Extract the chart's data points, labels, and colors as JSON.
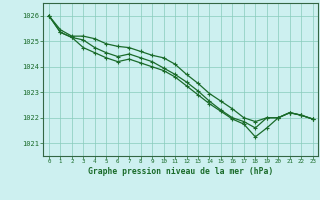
{
  "title": "Graphe pression niveau de la mer (hPa)",
  "bg_color": "#cdf0f0",
  "grid_color": "#88ccbb",
  "line_color": "#1a6b2a",
  "spine_color": "#336644",
  "xlim": [
    -0.5,
    23.5
  ],
  "ylim": [
    1020.5,
    1026.5
  ],
  "yticks": [
    1021,
    1022,
    1023,
    1024,
    1025,
    1026
  ],
  "xticks": [
    0,
    1,
    2,
    3,
    4,
    5,
    6,
    7,
    8,
    9,
    10,
    11,
    12,
    13,
    14,
    15,
    16,
    17,
    18,
    19,
    20,
    21,
    22,
    23
  ],
  "series1": [
    [
      0,
      1026.0
    ],
    [
      1,
      1025.45
    ],
    [
      2,
      1025.2
    ],
    [
      3,
      1025.2
    ],
    [
      4,
      1025.1
    ],
    [
      5,
      1024.9
    ],
    [
      6,
      1024.8
    ],
    [
      7,
      1024.75
    ],
    [
      8,
      1024.6
    ],
    [
      9,
      1024.45
    ],
    [
      10,
      1024.35
    ],
    [
      11,
      1024.1
    ],
    [
      12,
      1023.7
    ],
    [
      13,
      1023.35
    ],
    [
      14,
      1022.95
    ],
    [
      15,
      1022.65
    ],
    [
      16,
      1022.35
    ],
    [
      17,
      1022.0
    ],
    [
      18,
      1021.85
    ],
    [
      19,
      1022.0
    ],
    [
      20,
      1022.0
    ],
    [
      21,
      1022.2
    ],
    [
      22,
      1022.1
    ],
    [
      23,
      1021.95
    ]
  ],
  "series2": [
    [
      0,
      1026.0
    ],
    [
      1,
      1025.35
    ],
    [
      2,
      1025.15
    ],
    [
      3,
      1024.75
    ],
    [
      4,
      1024.55
    ],
    [
      5,
      1024.35
    ],
    [
      6,
      1024.2
    ],
    [
      7,
      1024.3
    ],
    [
      8,
      1024.15
    ],
    [
      9,
      1024.0
    ],
    [
      10,
      1023.85
    ],
    [
      11,
      1023.6
    ],
    [
      12,
      1023.25
    ],
    [
      13,
      1022.9
    ],
    [
      14,
      1022.55
    ],
    [
      15,
      1022.25
    ],
    [
      16,
      1021.95
    ],
    [
      17,
      1021.75
    ],
    [
      18,
      1021.25
    ],
    [
      19,
      1021.6
    ],
    [
      20,
      1022.0
    ],
    [
      21,
      1022.2
    ],
    [
      22,
      1022.1
    ],
    [
      23,
      1021.95
    ]
  ],
  "series3": [
    [
      0,
      1026.0
    ],
    [
      1,
      1025.35
    ],
    [
      2,
      1025.15
    ],
    [
      3,
      1025.05
    ],
    [
      4,
      1024.75
    ],
    [
      5,
      1024.55
    ],
    [
      6,
      1024.4
    ],
    [
      7,
      1024.5
    ],
    [
      8,
      1024.35
    ],
    [
      9,
      1024.2
    ],
    [
      10,
      1023.95
    ],
    [
      11,
      1023.7
    ],
    [
      12,
      1023.4
    ],
    [
      13,
      1023.05
    ],
    [
      14,
      1022.65
    ],
    [
      15,
      1022.3
    ],
    [
      16,
      1022.0
    ],
    [
      17,
      1021.85
    ],
    [
      18,
      1021.6
    ],
    [
      19,
      1022.0
    ],
    [
      20,
      1022.0
    ],
    [
      21,
      1022.2
    ],
    [
      22,
      1022.1
    ],
    [
      23,
      1021.95
    ]
  ]
}
